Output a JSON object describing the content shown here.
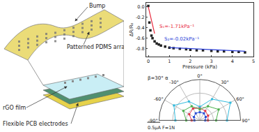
{
  "diagram": {
    "labels": [
      "Bump",
      "Patterned PDMS array",
      "rGO film",
      "Flexible PCB electrodes"
    ]
  },
  "chart_data": [
    {
      "type": "scatter",
      "x_label": "Pressure (kPa)",
      "y_label": "ΔR/R₀",
      "xlim": [
        -0.1,
        5
      ],
      "xticks": [
        0,
        1,
        2,
        3,
        4,
        5
      ],
      "ylim": [
        -0.95,
        0.08
      ],
      "yticks": [
        {
          "value": 0,
          "label": "0.0"
        },
        -0.2,
        -0.4,
        -0.6,
        -0.8
      ],
      "grid": false,
      "series": [
        {
          "type": "scatter",
          "marker": "square",
          "color": "#222222",
          "x": [
            0,
            0.05,
            0.1,
            0.15,
            0.2,
            0.3,
            0.4,
            0.5,
            0.6,
            0.8,
            1.0,
            1.2,
            1.5,
            1.8,
            2.0,
            2.3,
            2.6,
            3.0,
            3.3,
            3.6,
            4.0,
            4.3,
            4.6
          ],
          "values": [
            0.02,
            -0.3,
            -0.45,
            -0.55,
            -0.6,
            -0.66,
            -0.7,
            -0.72,
            -0.74,
            -0.76,
            -0.78,
            -0.79,
            -0.8,
            -0.81,
            -0.82,
            -0.83,
            -0.83,
            -0.84,
            -0.85,
            -0.85,
            -0.86,
            -0.86,
            -0.87
          ]
        },
        {
          "type": "line",
          "line_style": "solid",
          "color": "#e8283c",
          "x": [
            0,
            0.3
          ],
          "values": [
            0,
            -0.51
          ]
        },
        {
          "type": "line",
          "line_style": "solid",
          "color": "#2b3fd8",
          "x": [
            1.0,
            4.6
          ],
          "values": [
            -0.78,
            -0.85
          ]
        }
      ],
      "annotations": [
        {
          "text": "S₁=-1.71kPa⁻¹",
          "x": 0.45,
          "y": -0.38,
          "color": "#e8283c"
        },
        {
          "text": "S₂=-0.02kPa⁻¹",
          "x": 0.7,
          "y": -0.62,
          "color": "#2b3fd8"
        }
      ]
    },
    {
      "type": "polar",
      "title": "β=30° α",
      "xlim": [
        -90,
        90
      ],
      "xticks": [
        {
          "value": -90,
          "label": "-90°"
        },
        {
          "value": -60,
          "label": "-60°"
        },
        {
          "value": -30,
          "label": "-30°"
        },
        {
          "value": 0,
          "label": "0°"
        },
        {
          "value": 30,
          "label": "30°"
        },
        {
          "value": 60,
          "label": "60°"
        },
        {
          "value": 90,
          "label": "90°"
        }
      ],
      "ylim": [
        0,
        1.5
      ],
      "yticks": [
        0.5,
        1,
        1.5
      ],
      "tick_labels": "x",
      "grid": true,
      "series": [
        {
          "color": "#2a4fd6",
          "marker": "square",
          "x": [
            -90,
            -60,
            -30,
            0,
            30,
            60,
            90
          ],
          "values": [
            0.2,
            0.25,
            0.3,
            0.3,
            0.3,
            0.25,
            0.2
          ]
        },
        {
          "color": "#e0364a",
          "marker": "square",
          "x": [
            -90,
            -60,
            -30,
            0,
            30,
            60,
            90
          ],
          "values": [
            0.3,
            0.45,
            0.5,
            0.45,
            0.4,
            0.35,
            0.3
          ]
        },
        {
          "color": "#4ab04a",
          "marker": "square",
          "x": [
            -90,
            -60,
            -30,
            0,
            30,
            60,
            90
          ],
          "values": [
            0.5,
            0.7,
            0.6,
            0.4,
            0.6,
            0.8,
            0.6
          ]
        },
        {
          "color": "#33bbdd",
          "marker": "square",
          "x": [
            -90,
            -60,
            -30,
            0,
            30,
            60,
            90
          ],
          "values": [
            0.9,
            1.1,
            0.8,
            0.5,
            0.9,
            1.3,
            1.0
          ]
        }
      ],
      "annotations": [
        {
          "text": "0.5μA F=1N"
        }
      ]
    }
  ]
}
